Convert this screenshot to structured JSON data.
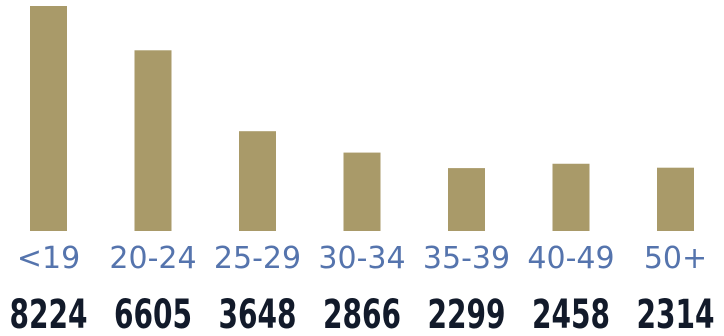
{
  "colors": {
    "bar": "#a99a69",
    "category_text": "#5574ad",
    "value_text": "#121a2a"
  },
  "chart_data": {
    "type": "bar",
    "categories": [
      "<19",
      "20-24",
      "25-29",
      "30-34",
      "35-39",
      "40-49",
      "50+"
    ],
    "values": [
      8224,
      6605,
      3648,
      2866,
      2299,
      2458,
      2314
    ],
    "title": "",
    "xlabel": "",
    "ylabel": "",
    "ylim": [
      0,
      8224
    ],
    "grid": false,
    "legend": "none"
  }
}
